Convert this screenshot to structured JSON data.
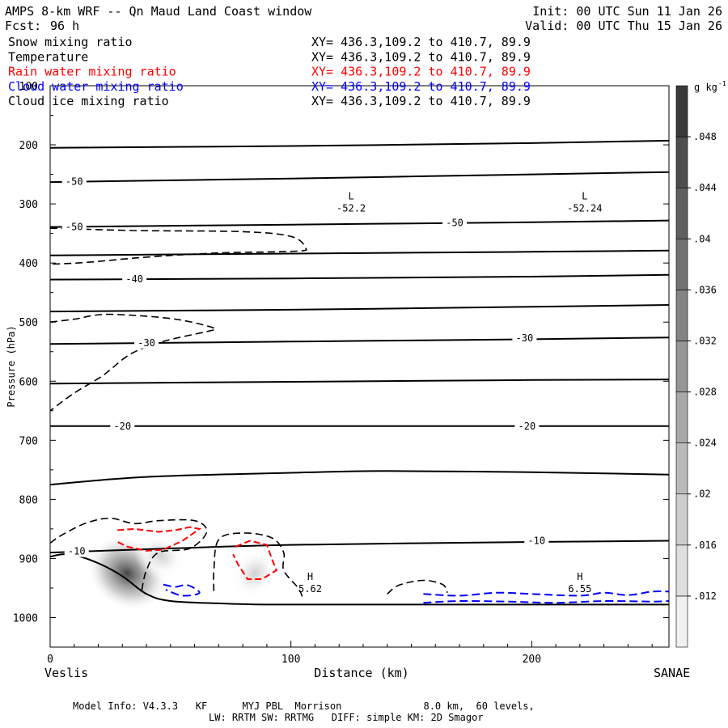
{
  "header": {
    "title": "AMPS 8-km WRF -- Qn Maud Land Coast window",
    "init": "Init: 00 UTC Sun 11 Jan 26",
    "fcst_label": "Fcst:",
    "fcst_value": "96 h",
    "valid": "Valid: 00 UTC Thu 15 Jan 26"
  },
  "colors": {
    "snow": "#000000",
    "temperature": "#000000",
    "rain": "#ff0000",
    "cloud_water": "#0000ff",
    "cloud_ice": "#000000",
    "terrain": "#000000",
    "frame": "#000000"
  },
  "chart_data": {
    "type": "cross-section",
    "fields": [
      {
        "name": "Snow mixing ratio",
        "xy": "XY= 436.3,109.2 to 410.7, 89.9",
        "color": "#000000",
        "style": "shaded"
      },
      {
        "name": "Temperature",
        "xy": "XY= 436.3,109.2 to 410.7, 89.9",
        "color": "#000000",
        "style": "solid"
      },
      {
        "name": "Rain water mixing ratio",
        "xy": "XY= 436.3,109.2 to 410.7, 89.9",
        "color": "#ff0000",
        "style": "dashed"
      },
      {
        "name": "Cloud water mixing ratio",
        "xy": "XY= 436.3,109.2 to 410.7, 89.9",
        "color": "#0000ff",
        "style": "dashed"
      },
      {
        "name": "Cloud ice mixing ratio",
        "xy": "XY= 436.3,109.2 to 410.7, 89.9",
        "color": "#000000",
        "style": "dashed"
      }
    ],
    "xlabel": "Distance (km)",
    "ylabel": "Pressure (hPa)",
    "xlim": [
      0,
      257
    ],
    "ylim": [
      1050,
      100
    ],
    "x_ticks": [
      0,
      100,
      200
    ],
    "y_ticks": [
      100,
      200,
      300,
      400,
      500,
      600,
      700,
      800,
      900,
      1000
    ],
    "left_endpoint": "Veslis",
    "right_endpoint": "SANAE",
    "colorbar": {
      "unit": "g kg",
      "unit_exp": "-1",
      "ticks": [
        ".012",
        ".016",
        ".02",
        ".024",
        ".028",
        ".032",
        ".036",
        ".04",
        ".044",
        ".048"
      ],
      "levels": [
        0.008,
        0.012,
        0.016,
        0.02,
        0.024,
        0.028,
        0.032,
        0.036,
        0.04,
        0.044,
        0.048,
        0.052
      ]
    },
    "isotherms": [
      {
        "pts": [
          [
            0,
            205
          ],
          [
            100,
            202
          ],
          [
            200,
            197
          ],
          [
            257,
            193
          ]
        ]
      },
      {
        "pts": [
          [
            0,
            263
          ],
          [
            100,
            257
          ],
          [
            200,
            250
          ],
          [
            257,
            246
          ]
        ],
        "labels": [
          {
            "x": 10,
            "p": 262,
            "text": "-50"
          }
        ]
      },
      {
        "pts": [
          [
            0,
            339
          ],
          [
            100,
            335
          ],
          [
            200,
            331
          ],
          [
            257,
            328
          ]
        ],
        "labels": [
          {
            "x": 10,
            "p": 339,
            "text": "-50"
          },
          {
            "x": 168,
            "p": 332,
            "text": "-50"
          }
        ]
      },
      {
        "pts": [
          [
            0,
            387
          ],
          [
            100,
            384
          ],
          [
            200,
            381
          ],
          [
            257,
            379
          ]
        ]
      },
      {
        "pts": [
          [
            0,
            428
          ],
          [
            100,
            426
          ],
          [
            200,
            423
          ],
          [
            257,
            420
          ]
        ],
        "labels": [
          {
            "x": 35,
            "p": 427,
            "text": "-40"
          }
        ]
      },
      {
        "pts": [
          [
            0,
            482
          ],
          [
            100,
            479
          ],
          [
            200,
            474
          ],
          [
            257,
            471
          ]
        ]
      },
      {
        "pts": [
          [
            0,
            537
          ],
          [
            100,
            533
          ],
          [
            200,
            529
          ],
          [
            257,
            526
          ]
        ],
        "labels": [
          {
            "x": 40,
            "p": 535,
            "text": "-30"
          },
          {
            "x": 197,
            "p": 527,
            "text": "-30"
          }
        ]
      },
      {
        "pts": [
          [
            0,
            604
          ],
          [
            100,
            601
          ],
          [
            200,
            598
          ],
          [
            257,
            597
          ]
        ]
      },
      {
        "pts": [
          [
            0,
            676
          ],
          [
            100,
            676
          ],
          [
            200,
            676
          ],
          [
            257,
            676
          ]
        ],
        "labels": [
          {
            "x": 30,
            "p": 676,
            "text": "-20"
          },
          {
            "x": 198,
            "p": 676,
            "text": "-20"
          }
        ]
      },
      {
        "pts": [
          [
            0,
            775
          ],
          [
            40,
            762
          ],
          [
            100,
            755
          ],
          [
            140,
            752
          ],
          [
            200,
            754
          ],
          [
            257,
            758
          ]
        ]
      },
      {
        "pts": [
          [
            0,
            890
          ],
          [
            50,
            883
          ],
          [
            100,
            877
          ],
          [
            200,
            872
          ],
          [
            257,
            870
          ]
        ],
        "labels": [
          {
            "x": 11,
            "p": 888,
            "text": "-10"
          },
          {
            "x": 202,
            "p": 870,
            "text": "-10"
          }
        ]
      }
    ],
    "terrain": [
      [
        0,
        897
      ],
      [
        5,
        893
      ],
      [
        10,
        894
      ],
      [
        20,
        908
      ],
      [
        30,
        930
      ],
      [
        40,
        960
      ],
      [
        50,
        972
      ],
      [
        70,
        976
      ],
      [
        90,
        978
      ],
      [
        120,
        978
      ],
      [
        160,
        978
      ],
      [
        200,
        978
      ],
      [
        257,
        978
      ]
    ],
    "extremes": [
      {
        "type": "L",
        "value": "-52.2",
        "x": 125,
        "p": 314
      },
      {
        "type": "L",
        "value": "-52.24",
        "x": 222,
        "p": 314
      },
      {
        "type": "H",
        "value": "5.62",
        "x": 108,
        "p": 958
      },
      {
        "type": "H",
        "value": "6.55",
        "x": 220,
        "p": 958
      }
    ],
    "cloud_ice_contours": [
      {
        "pts": [
          [
            0,
            341
          ],
          [
            35,
            345
          ],
          [
            80,
            347
          ],
          [
            100,
            355
          ],
          [
            106,
            374
          ],
          [
            102,
            380
          ],
          [
            70,
            383
          ],
          [
            40,
            390
          ],
          [
            15,
            399
          ],
          [
            0,
            402
          ]
        ]
      },
      {
        "pts": [
          [
            0,
            500
          ],
          [
            10,
            495
          ],
          [
            22,
            487
          ],
          [
            40,
            490
          ],
          [
            55,
            497
          ],
          [
            68,
            510
          ],
          [
            66,
            515
          ],
          [
            57,
            523
          ],
          [
            45,
            535
          ],
          [
            33,
            555
          ],
          [
            22,
            590
          ],
          [
            10,
            620
          ],
          [
            0,
            650
          ]
        ]
      },
      {
        "pts": [
          [
            0,
            874
          ],
          [
            5,
            860
          ],
          [
            15,
            840
          ],
          [
            25,
            832
          ],
          [
            35,
            841
          ],
          [
            45,
            836
          ],
          [
            60,
            836
          ],
          [
            65,
            855
          ],
          [
            58,
            883
          ],
          [
            45,
            890
          ],
          [
            40,
            920
          ],
          [
            38,
            955
          ]
        ]
      },
      {
        "pts": [
          [
            68,
            955
          ],
          [
            68,
            920
          ],
          [
            70,
            868
          ],
          [
            80,
            857
          ],
          [
            92,
            865
          ],
          [
            97,
            890
          ],
          [
            97,
            920
          ],
          [
            103,
            950
          ],
          [
            105,
            968
          ]
        ]
      },
      {
        "pts": [
          [
            140,
            960
          ],
          [
            145,
            945
          ],
          [
            155,
            937
          ],
          [
            163,
            944
          ],
          [
            165,
            958
          ]
        ]
      }
    ],
    "rain_contours": [
      {
        "pts": [
          [
            28,
            852
          ],
          [
            35,
            850
          ],
          [
            45,
            855
          ],
          [
            52,
            852
          ],
          [
            58,
            847
          ],
          [
            62,
            850
          ],
          [
            55,
            870
          ],
          [
            47,
            885
          ],
          [
            40,
            887
          ],
          [
            32,
            880
          ],
          [
            27,
            870
          ]
        ]
      },
      {
        "pts": [
          [
            77,
            880
          ],
          [
            83,
            870
          ],
          [
            90,
            877
          ],
          [
            92,
            900
          ],
          [
            94,
            920
          ],
          [
            88,
            935
          ],
          [
            82,
            935
          ],
          [
            78,
            910
          ],
          [
            76,
            893
          ]
        ]
      }
    ],
    "cloud_water_contours": [
      {
        "pts": [
          [
            47,
            944
          ],
          [
            52,
            948
          ],
          [
            57,
            945
          ],
          [
            62,
            958
          ],
          [
            55,
            963
          ],
          [
            48,
            953
          ]
        ]
      },
      {
        "pts": [
          [
            155,
            960
          ],
          [
            170,
            963
          ],
          [
            185,
            958
          ],
          [
            200,
            960
          ],
          [
            220,
            963
          ],
          [
            230,
            958
          ],
          [
            240,
            962
          ],
          [
            250,
            956
          ],
          [
            257,
            956
          ]
        ]
      },
      {
        "pts": [
          [
            155,
            975
          ],
          [
            170,
            972
          ],
          [
            190,
            973
          ],
          [
            210,
            975
          ],
          [
            230,
            972
          ],
          [
            250,
            973
          ],
          [
            257,
            972
          ]
        ]
      }
    ],
    "snow_blobs": [
      {
        "x": 32,
        "p": 925,
        "rx": 18,
        "rp": 60,
        "peak": 0.05
      },
      {
        "x": 46,
        "p": 895,
        "rx": 12,
        "rp": 40,
        "peak": 0.018
      },
      {
        "x": 85,
        "p": 925,
        "rx": 10,
        "rp": 50,
        "peak": 0.018
      }
    ]
  },
  "footer": {
    "line1": "Model Info: V4.3.3   KF      MYJ PBL  Morrison              8.0 km,  60 levels,",
    "line2": "LW: RRTM SW: RRTMG   DIFF: simple KM: 2D Smagor"
  }
}
